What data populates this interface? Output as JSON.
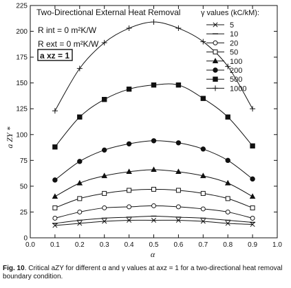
{
  "chart_data": {
    "type": "line",
    "title": "Two-Directional External Heat Removal",
    "annotations": {
      "r_int": "R int = 0 m²K/W",
      "r_ext": "R ext = 0 m²K/W",
      "axz": "a xz = 1"
    },
    "xlabel": "α",
    "ylabel": "a ZY *",
    "xlim": [
      0.0,
      1.0
    ],
    "ylim": [
      0,
      225
    ],
    "x_ticks": [
      "0.0",
      "0.1",
      "0.2",
      "0.3",
      "0.4",
      "0.5",
      "0.6",
      "0.7",
      "0.8",
      "0.9",
      "1.0"
    ],
    "y_ticks": [
      "0",
      "25",
      "50",
      "75",
      "100",
      "125",
      "150",
      "175",
      "200",
      "225"
    ],
    "grid": false,
    "legend_title": "γ values (kC/kM):",
    "legend_position": "top-right",
    "x": [
      0.1,
      0.2,
      0.3,
      0.4,
      0.5,
      0.6,
      0.7,
      0.8,
      0.9
    ],
    "series": [
      {
        "name": "5",
        "marker": "x",
        "values": [
          12,
          14,
          16,
          17,
          17,
          17,
          16,
          14,
          13
        ]
      },
      {
        "name": "10",
        "marker": "hline",
        "values": [
          14,
          17,
          19,
          20,
          21,
          20,
          19,
          17,
          15
        ]
      },
      {
        "name": "20",
        "marker": "circle-open",
        "values": [
          19,
          25,
          29,
          30,
          31,
          30,
          28,
          25,
          19
        ]
      },
      {
        "name": "50",
        "marker": "square-open",
        "values": [
          29,
          38,
          43,
          46,
          47,
          46,
          43,
          38,
          29
        ]
      },
      {
        "name": "100",
        "marker": "triangle-filled",
        "values": [
          40,
          53,
          60,
          64,
          66,
          64,
          60,
          53,
          40
        ]
      },
      {
        "name": "200",
        "marker": "circle-filled",
        "values": [
          56,
          74,
          85,
          91,
          94,
          92,
          86,
          75,
          57
        ]
      },
      {
        "name": "500",
        "marker": "square-filled",
        "values": [
          88,
          117,
          134,
          144,
          148,
          148,
          135,
          117,
          89
        ]
      },
      {
        "name": "1000",
        "marker": "plus",
        "values": [
          123,
          164,
          189,
          203,
          209,
          203,
          190,
          166,
          125
        ]
      }
    ]
  },
  "caption": {
    "label": "Fig. 10",
    "text": ". Critical aZY for different α and γ values at axz = 1 for a two-directional heat removal boundary condition."
  }
}
